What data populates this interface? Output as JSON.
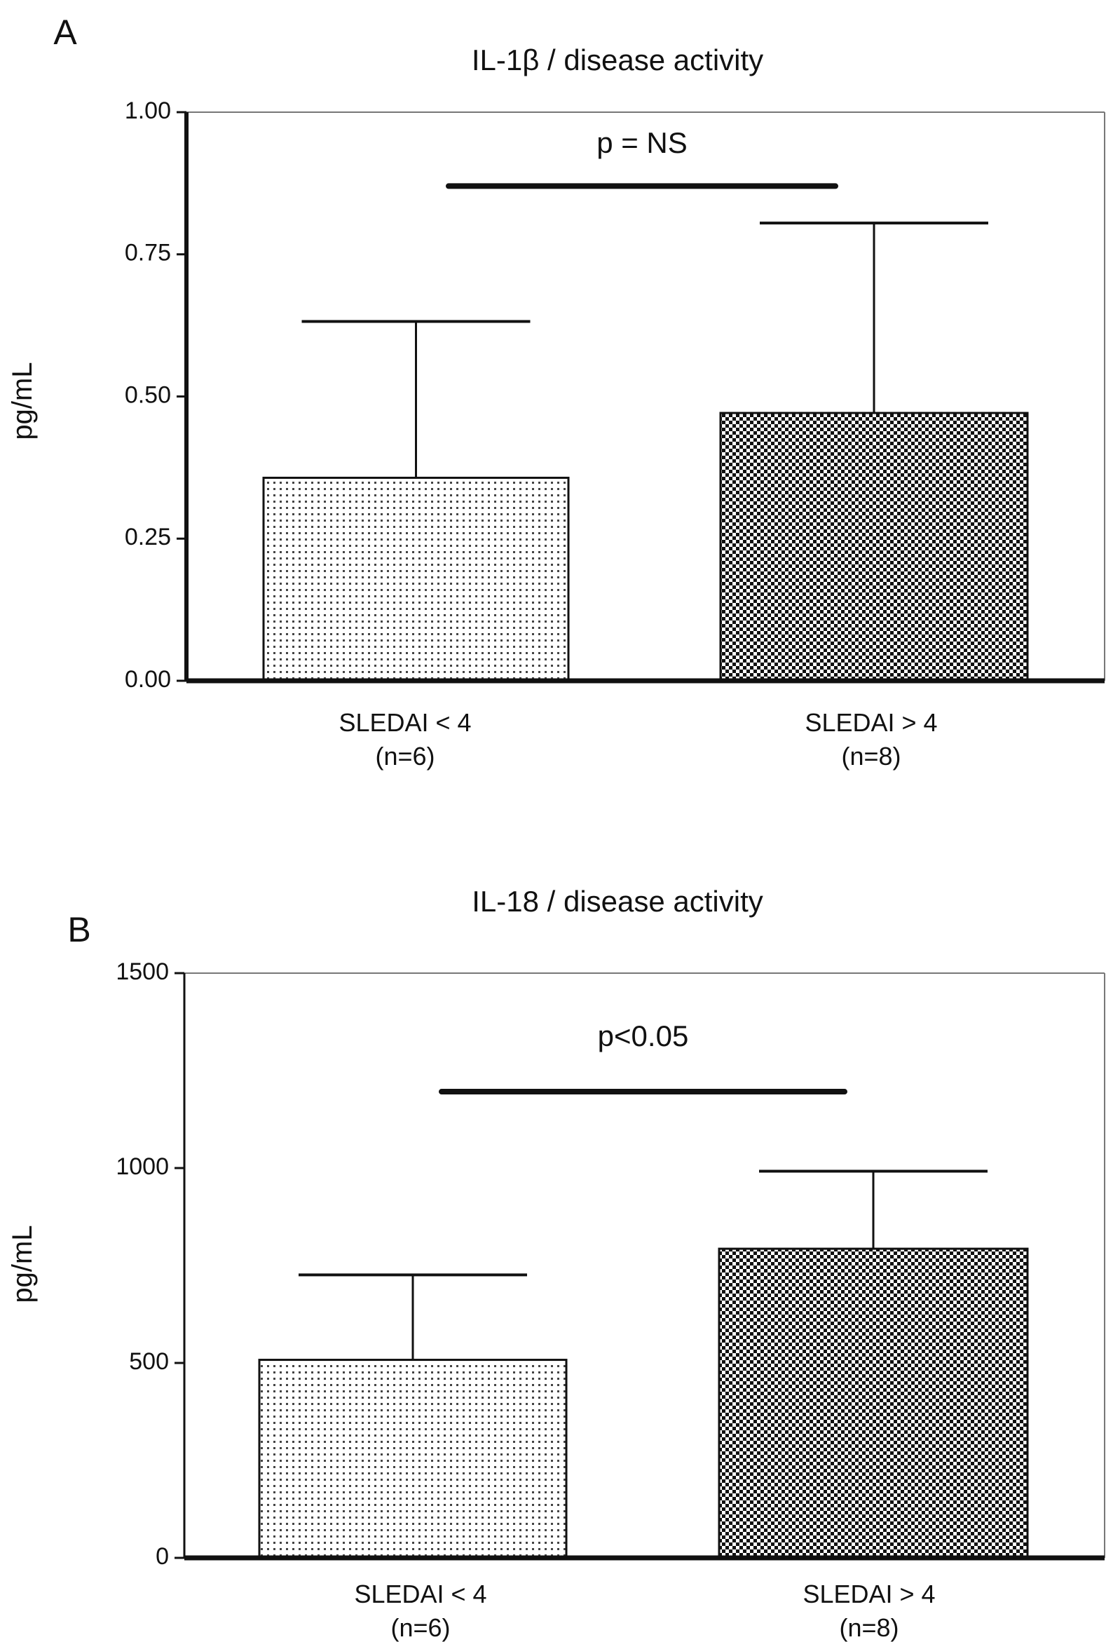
{
  "chart_data": [
    {
      "type": "bar",
      "panel_label": "A",
      "title": "IL-1β / disease activity",
      "ylabel": "pg/mL",
      "xlabel": "",
      "ylim": [
        0,
        1.0
      ],
      "yticks": [
        "0.00",
        "0.25",
        "0.50",
        "0.75",
        "1.00"
      ],
      "ytick_values": [
        0,
        0.25,
        0.5,
        0.75,
        1.0
      ],
      "categories": [
        {
          "label": "SLEDAI < 4",
          "n": "(n=6)"
        },
        {
          "label": "SLEDAI > 4",
          "n": "(n=8)"
        }
      ],
      "values": [
        0.357,
        0.471
      ],
      "error_upper": [
        0.632,
        0.805
      ],
      "patterns": [
        "dots",
        "checker"
      ],
      "significance": {
        "text": "p = NS",
        "y": 0.87
      }
    },
    {
      "type": "bar",
      "panel_label": "B",
      "title": "IL-18 / disease activity",
      "ylabel": "pg/mL",
      "xlabel": "",
      "ylim": [
        0,
        1500
      ],
      "yticks": [
        "0",
        "500",
        "1000",
        "1500"
      ],
      "ytick_values": [
        0,
        500,
        1000,
        1500
      ],
      "categories": [
        {
          "label": "SLEDAI < 4",
          "n": "(n=6)"
        },
        {
          "label": "SLEDAI > 4",
          "n": "(n=8)"
        }
      ],
      "values": [
        508,
        793
      ],
      "error_upper": [
        726,
        992
      ],
      "patterns": [
        "dots",
        "checker"
      ],
      "significance": {
        "text": "p<0.05",
        "y": 1196
      }
    }
  ]
}
